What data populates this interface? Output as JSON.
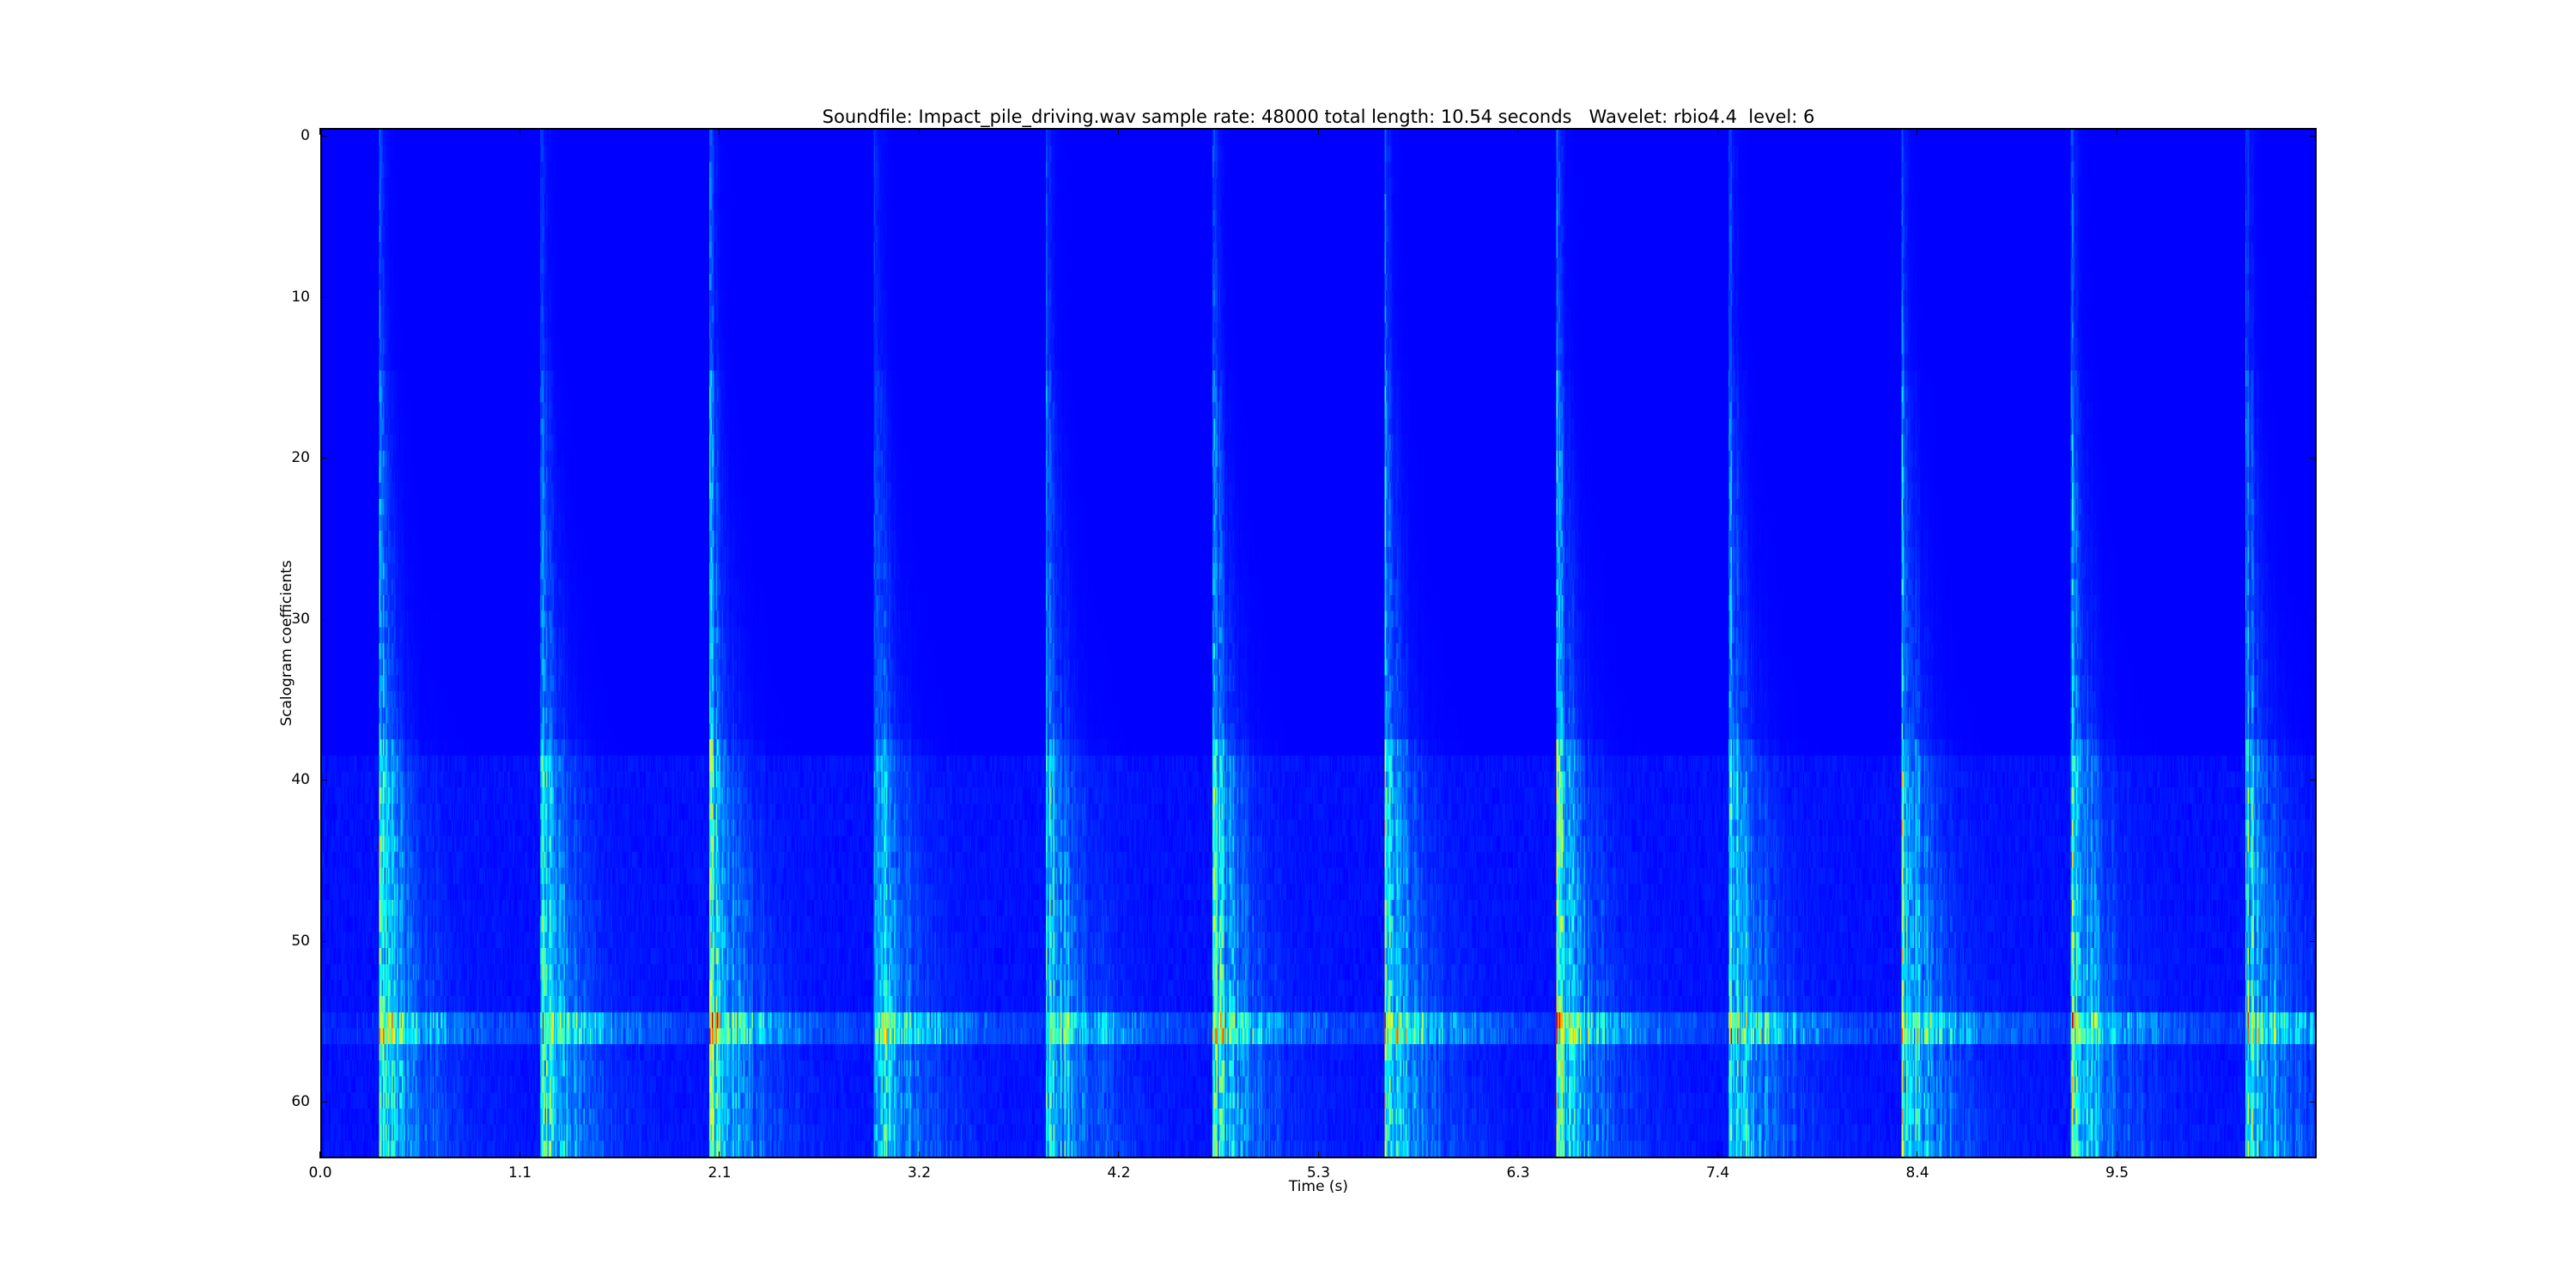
{
  "chart_data": {
    "type": "heatmap",
    "title": "Soundfile: Impact_pile_driving.wav sample rate: 48000 total length: 10.54 seconds   Wavelet: rbio4.4  level: 6",
    "xlabel": "Time (s)",
    "ylabel": "Scalogram coefficients",
    "xlim": [
      0,
      10.54
    ],
    "ylim": [
      63.5,
      -0.5
    ],
    "x_ticks": [
      0.0,
      1.054,
      2.108,
      3.162,
      4.216,
      5.27,
      6.324,
      7.378,
      8.432,
      9.486
    ],
    "x_tick_labels": [
      "0.0",
      "1.1",
      "2.1",
      "3.2",
      "4.2",
      "5.3",
      "6.3",
      "7.4",
      "8.4",
      "9.5"
    ],
    "y_ticks": [
      0,
      10,
      20,
      30,
      40,
      50,
      60
    ],
    "y_tick_labels": [
      "0",
      "10",
      "20",
      "30",
      "40",
      "50",
      "60"
    ],
    "rows": 64,
    "colormap": "jet",
    "background_color": "#00007f",
    "impact_times_s": [
      0.3,
      1.15,
      2.05,
      2.92,
      3.83,
      4.71,
      5.62,
      6.53,
      7.44,
      8.35,
      9.25,
      10.17
    ],
    "peak_rows": [
      55,
      56
    ],
    "grid": false
  }
}
